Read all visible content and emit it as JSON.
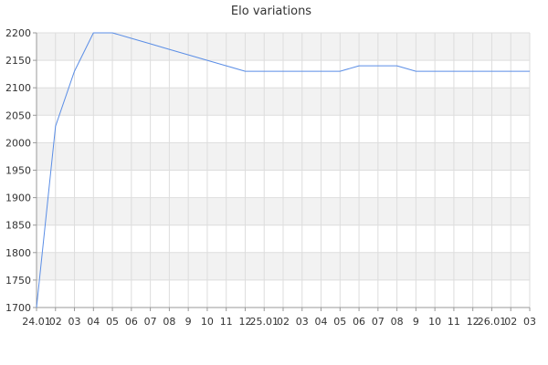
{
  "chart_data": {
    "type": "line",
    "title": "Elo variations",
    "xlabel": "",
    "ylabel": "",
    "ylim": [
      1700,
      2200
    ],
    "yticks": [
      1700,
      1750,
      1800,
      1850,
      1900,
      1950,
      2000,
      2050,
      2100,
      2150,
      2200
    ],
    "x": [
      "24.01",
      "02",
      "03",
      "04",
      "05",
      "06",
      "07",
      "08",
      "9",
      "10",
      "11",
      "12",
      "25.01",
      "02",
      "03",
      "04",
      "05",
      "06",
      "07",
      "08",
      "9",
      "10",
      "11",
      "12",
      "26.01",
      "02",
      "03"
    ],
    "grid": true,
    "series": [
      {
        "values": [
          1700,
          2030,
          2130,
          2200,
          2200,
          2190,
          2180,
          2170,
          2160,
          2150,
          2140,
          2130,
          2130,
          2130,
          2130,
          2130,
          2130,
          2140,
          2140,
          2140,
          2130,
          2130,
          2130,
          2130,
          2130,
          2130,
          2130
        ],
        "color": "#5b8ee6"
      }
    ],
    "colors": {
      "band": "#f2f2f2",
      "grid": "#dddddd",
      "axis": "#999999"
    }
  }
}
